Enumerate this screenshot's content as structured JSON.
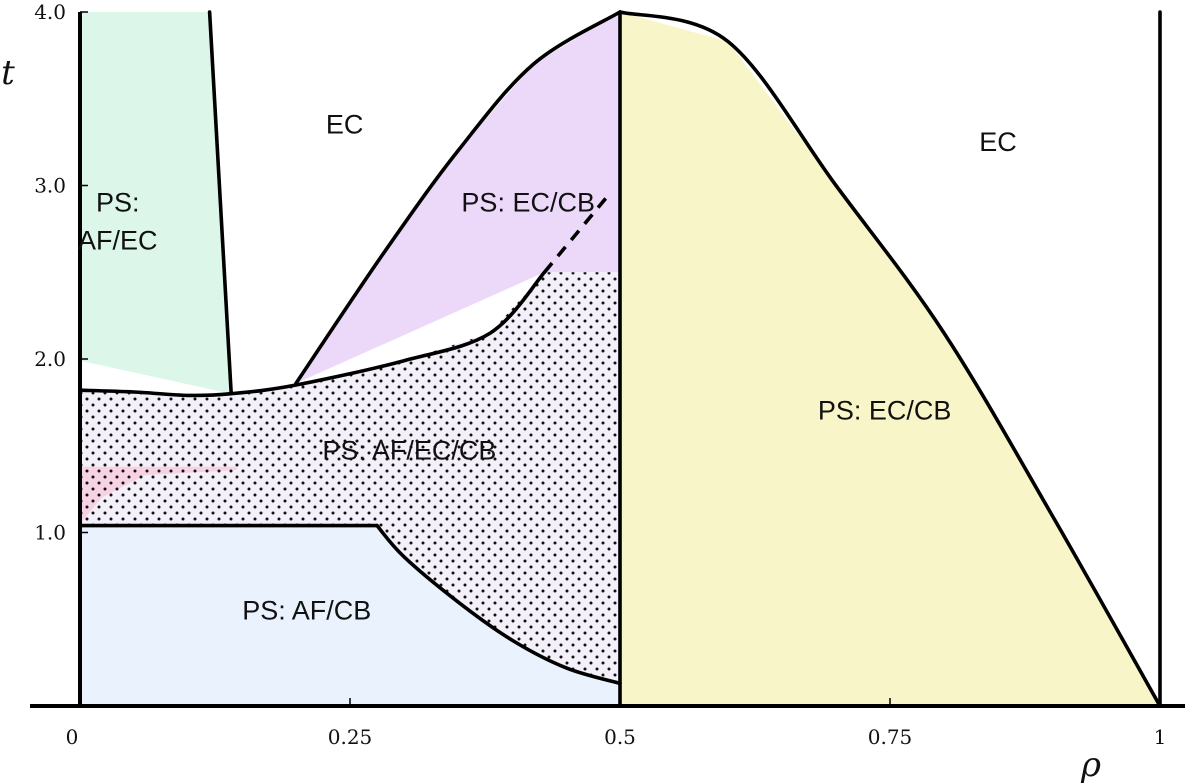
{
  "chart_data": {
    "type": "area",
    "title": "",
    "xlabel": "ρ",
    "ylabel": "t",
    "xlim": [
      0,
      1
    ],
    "ylim": [
      0,
      4
    ],
    "x_ticks": [
      {
        "value": 0,
        "label": "0"
      },
      {
        "value": 0.25,
        "label": "0.25"
      },
      {
        "value": 0.5,
        "label": "0.5"
      },
      {
        "value": 0.75,
        "label": "0.75"
      },
      {
        "value": 1,
        "label": "1"
      }
    ],
    "y_ticks": [
      {
        "value": 1,
        "label": "1.0"
      },
      {
        "value": 2,
        "label": "2.0"
      },
      {
        "value": 3,
        "label": "3.0"
      },
      {
        "value": 4,
        "label": "4.0"
      }
    ],
    "grid": false,
    "colors": {
      "ps_af_ec": "#dcf6ea",
      "ps_ec_cb_left": "#ecd9fa",
      "ps_ec_cb_right": "#f8f6c8",
      "ps_af_cb": "#eaf2fd",
      "pink_patch": "#f6d2e2",
      "dotted_region": "#f3f0fa",
      "boundary": "#000000"
    },
    "boundaries": [
      {
        "name": "af-ec-upper-boundary",
        "points": [
          [
            0.12,
            4.0
          ],
          [
            0.14,
            1.8
          ]
        ]
      },
      {
        "name": "dotted-region-top",
        "points": [
          [
            0,
            1.82
          ],
          [
            0.05,
            1.81
          ],
          [
            0.1,
            1.79
          ],
          [
            0.14,
            1.8
          ],
          [
            0.2,
            1.85
          ],
          [
            0.3,
            1.99
          ],
          [
            0.38,
            2.15
          ],
          [
            0.43,
            2.5
          ]
        ]
      },
      {
        "name": "ec-cb-dome-left",
        "points": [
          [
            0.2,
            1.86
          ],
          [
            0.28,
            2.6
          ],
          [
            0.35,
            3.2
          ],
          [
            0.42,
            3.7
          ],
          [
            0.5,
            4.0
          ]
        ]
      },
      {
        "name": "ec-cb-dome-right",
        "points": [
          [
            0.5,
            4.0
          ],
          [
            0.6,
            3.83
          ],
          [
            0.7,
            3.0
          ],
          [
            0.8,
            2.15
          ],
          [
            0.9,
            1.1
          ],
          [
            1.0,
            0.0
          ]
        ]
      },
      {
        "name": "af-cb-top",
        "points": [
          [
            0,
            1.04
          ],
          [
            0.275,
            1.04
          ],
          [
            0.3,
            0.86
          ],
          [
            0.35,
            0.6
          ],
          [
            0.4,
            0.38
          ],
          [
            0.45,
            0.22
          ],
          [
            0.5,
            0.13
          ]
        ]
      }
    ],
    "dashed_boundaries": [
      {
        "name": "ec-cb-dashed-continuation",
        "points": [
          [
            0.43,
            2.5
          ],
          [
            0.49,
            2.95
          ]
        ]
      }
    ],
    "vertical_lines": [
      {
        "name": "half-filling-line",
        "x": 0.5
      },
      {
        "name": "full-filling-line",
        "x": 1.0
      }
    ],
    "regions": [
      {
        "label": "PS:\nAF/EC",
        "x": 0.035,
        "y": 2.85
      },
      {
        "label": "EC",
        "x": 0.245,
        "y": 3.3
      },
      {
        "label": "PS: EC/CB",
        "x": 0.415,
        "y": 2.85
      },
      {
        "label": "PS: AF/EC/CB",
        "x": 0.305,
        "y": 1.42
      },
      {
        "label": "PS: AF/CB",
        "x": 0.21,
        "y": 0.5
      },
      {
        "label": "PS: EC/CB",
        "x": 0.745,
        "y": 1.65
      },
      {
        "label": "EC",
        "x": 0.85,
        "y": 3.2
      }
    ]
  }
}
